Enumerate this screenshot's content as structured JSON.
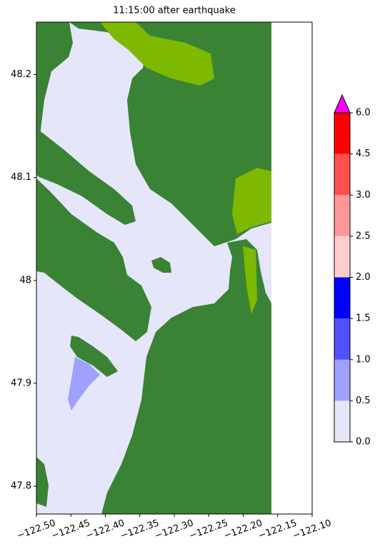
{
  "chart_data": {
    "type": "map",
    "title": "11:15:00 after earthquake",
    "xlim": [
      -122.5,
      -122.1
    ],
    "ylim": [
      47.773,
      48.251
    ],
    "xticks": [
      {
        "value": -122.5,
        "label": "−122.50"
      },
      {
        "value": -122.45,
        "label": "−122.45"
      },
      {
        "value": -122.4,
        "label": "−122.40"
      },
      {
        "value": -122.35,
        "label": "−122.35"
      },
      {
        "value": -122.3,
        "label": "−122.30"
      },
      {
        "value": -122.25,
        "label": "−122.25"
      },
      {
        "value": -122.2,
        "label": "−122.20"
      },
      {
        "value": -122.15,
        "label": "−122.15"
      },
      {
        "value": -122.1,
        "label": "−122.10"
      }
    ],
    "yticks": [
      47.8,
      47.9,
      48.0,
      48.1,
      48.2
    ],
    "colorbar": {
      "ticks": [
        {
          "value": 0,
          "label": "0.0"
        },
        0.5,
        {
          "value": 1,
          "label": "1.0"
        },
        1.5,
        {
          "value": 2,
          "label": "2.0"
        },
        2.5,
        {
          "value": 3,
          "label": "3.0"
        },
        4.5,
        {
          "value": 6,
          "label": "6.0"
        }
      ],
      "colors": [
        "#e6e6fa",
        "#a0a0ff",
        "#5050ff",
        "#0000ff",
        "#ffcccc",
        "#ff9999",
        "#ff5050",
        "#ff0000"
      ],
      "extend_color": "#ff00ff"
    }
  }
}
